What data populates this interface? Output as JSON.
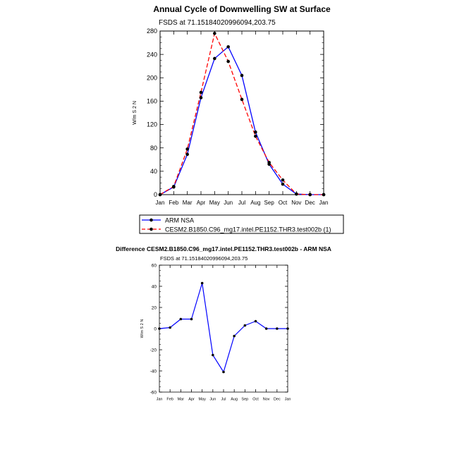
{
  "chart_data": [
    {
      "type": "line",
      "title": "Annual Cycle of Downwelling SW at Surface",
      "subtitle": "FSDS at 71.15184020996094,203.75",
      "xlabel": "",
      "ylabel": "W/m S 2 N",
      "categories": [
        "Jan",
        "Feb",
        "Mar",
        "Apr",
        "May",
        "Jun",
        "Jul",
        "Aug",
        "Sep",
        "Oct",
        "Nov",
        "Dec",
        "Jan"
      ],
      "ylim": [
        0,
        280
      ],
      "yticks": [
        0,
        40,
        80,
        120,
        160,
        200,
        240,
        280
      ],
      "legend_position": "below",
      "series": [
        {
          "name": "ARM NSA",
          "color": "#0000ff",
          "dash": "solid",
          "values": [
            0,
            13,
            69,
            166,
            233,
            253,
            204,
            107,
            52,
            18,
            1,
            0,
            0
          ]
        },
        {
          "name": "CESM2.B1850.C96_mg17.intel.PE1152.THR3.test002b (1)",
          "color": "#ff0000",
          "dash": "dashed",
          "values": [
            0,
            14,
            78,
            175,
            276,
            228,
            163,
            100,
            55,
            25,
            1,
            0,
            0
          ]
        }
      ]
    },
    {
      "type": "line",
      "title": "Difference CESM2.B1850.C96_mg17.intel.PE1152.THR3.test002b - ARM NSA",
      "subtitle": "FSDS at 71.15184020996094,203.75",
      "xlabel": "",
      "ylabel": "W/m S 2 N",
      "categories": [
        "Jan",
        "Feb",
        "Mar",
        "Apr",
        "May",
        "Jun",
        "Jul",
        "Aug",
        "Sep",
        "Oct",
        "Nov",
        "Dec",
        "Jan"
      ],
      "ylim": [
        -60,
        60
      ],
      "yticks": [
        -60,
        -40,
        -20,
        0,
        20,
        40,
        60
      ],
      "series": [
        {
          "color": "#0000ff",
          "dash": "solid",
          "values": [
            0,
            1,
            9,
            9,
            43,
            -25,
            -41,
            -7,
            3,
            7,
            0,
            0,
            0
          ]
        }
      ]
    }
  ]
}
